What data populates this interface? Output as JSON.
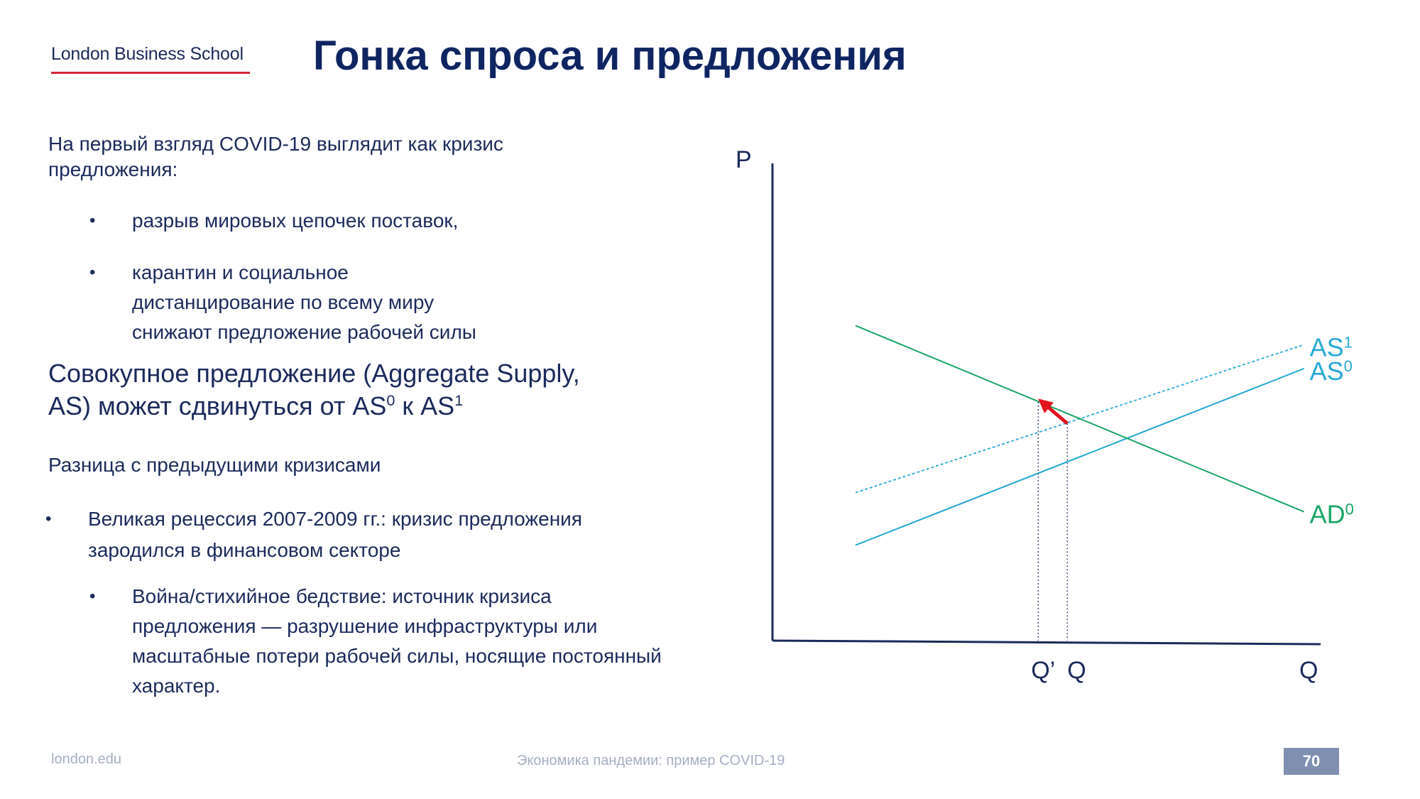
{
  "header": {
    "logo_text": "London Business School",
    "title": "Гонка спроса и предложения"
  },
  "body": {
    "intro": "На первый взгляд COVID-19 выглядит как кризис предложения:",
    "bullets": [
      "разрыв мировых цепочек поставок,",
      "карантин и социальное дистанцирование по всему миру снижают предложение рабочей силы"
    ],
    "big_text_main": "Совокупное предложение (Aggregate Supply, AS) может сдвинуться от AS",
    "big_text_sup1": "0",
    "big_text_mid": " к AS",
    "big_text_sup2": "1",
    "subheading": "Разница с предыдущими кризисами",
    "crisis_bullets": [
      "Великая рецессия 2007-2009 гг.: кризис предложения зародился в финансовом секторе",
      "Война/стихийное бедствие: источник кризиса предложения — разрушение инфраструктуры или масштабные потери рабочей силы, носящие постоянный характер."
    ]
  },
  "chart_data": {
    "type": "line",
    "y_axis_label": "P",
    "x_axis_label": "Q",
    "x_ticks": [
      "Q’",
      "Q"
    ],
    "series": [
      {
        "name": "AS",
        "sup": "1",
        "color": "#27a9d6",
        "style": "dashed",
        "from": [
          1,
          3.1
        ],
        "to": [
          6.4,
          6.2
        ]
      },
      {
        "name": "AS",
        "sup": "0",
        "color": "#27a9d6",
        "style": "solid",
        "from": [
          1,
          2
        ],
        "to": [
          6.4,
          5.7
        ]
      },
      {
        "name": "AD",
        "sup": "0",
        "color": "#1aa666",
        "style": "solid",
        "from": [
          1,
          6.6
        ],
        "to": [
          6.4,
          2.7
        ]
      }
    ],
    "equilibria": [
      {
        "label": "Q’",
        "x": 3.2,
        "y": 5.0
      },
      {
        "label": "Q",
        "x": 3.55,
        "y": 4.55
      }
    ],
    "shift_arrow": {
      "color": "#e0141e",
      "from": [
        3.55,
        4.55
      ],
      "to": [
        3.2,
        5.0
      ]
    },
    "xlim": [
      0,
      6.6
    ],
    "ylim": [
      0,
      10
    ]
  },
  "footer": {
    "site": "london.edu",
    "caption": "Экономика пандемии: пример COVID-19",
    "page": "70"
  }
}
